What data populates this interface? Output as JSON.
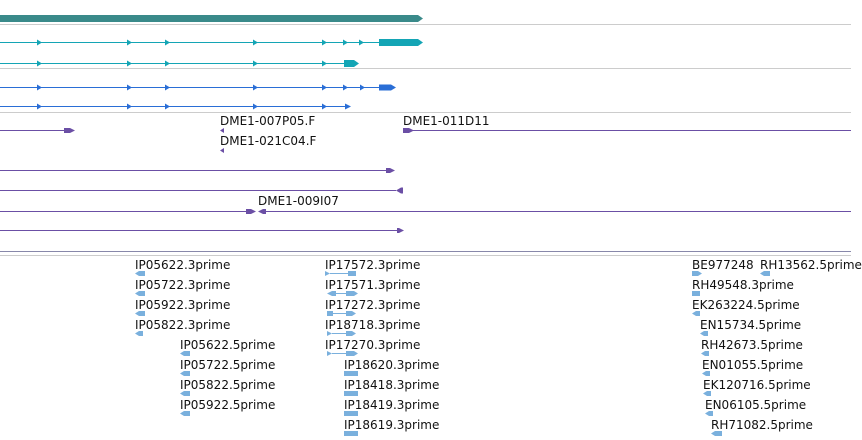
{
  "colors": {
    "gene": "#3a8a8a",
    "transcript_teal": "#14a5b5",
    "transcript_blue": "#2a6ed6",
    "cdna": "#6b4fa5",
    "est": "#7ab0dd",
    "separator": "#cccccc"
  },
  "clone_labels": [
    "DME1-007P05.F",
    "DME1-021C04.F",
    "DME1-011D11",
    "DME1-009I07"
  ],
  "est_labels": {
    "group_left": [
      "IP05622.3prime",
      "IP05722.3prime",
      "IP05922.3prime",
      "IP05822.3prime",
      "IP05622.5prime",
      "IP05722.5prime",
      "IP05822.5prime",
      "IP05922.5prime"
    ],
    "group_middle": [
      "IP17572.3prime",
      "IP17571.3prime",
      "IP17272.3prime",
      "IP18718.3prime",
      "IP17270.3prime",
      "IP18620.3prime",
      "IP18418.3prime",
      "IP18419.3prime",
      "IP18619.3prime"
    ],
    "group_right": [
      "BE977248",
      "RH13562.5prime",
      "RH49548.3prime",
      "EK263224.5prime",
      "EN15734.5prime",
      "RH42673.5prime",
      "EN01055.5prime",
      "EK120716.5prime",
      "EN06105.5prime",
      "RH71082.5prime"
    ]
  }
}
